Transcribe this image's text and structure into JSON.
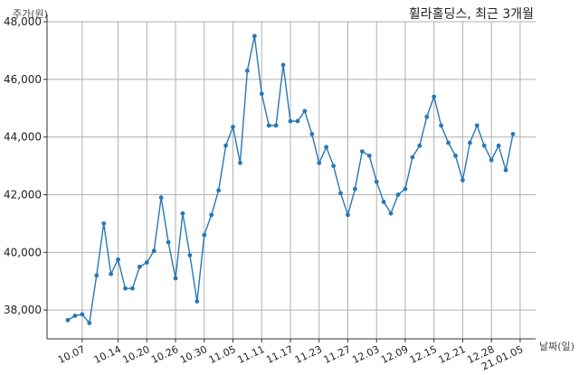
{
  "chart_data": {
    "type": "line",
    "title": "휠라홀딩스, 최근 3개월",
    "xlabel": "날짜(일)",
    "ylabel": "주가(원)",
    "ylim": [
      37000,
      48000
    ],
    "yticks": [
      38000,
      40000,
      42000,
      44000,
      46000,
      48000
    ],
    "ytick_labels": [
      "38,000",
      "40,000",
      "42,000",
      "44,000",
      "46,000",
      "48,000"
    ],
    "xtick_labels": [
      "10.07",
      "10.14",
      "10.20",
      "10.26",
      "10.30",
      "11.05",
      "11.11",
      "11.17",
      "11.23",
      "11.27",
      "12.03",
      "12.09",
      "12.15",
      "12.21",
      "12.28",
      "21.01.05"
    ],
    "xtick_index": [
      2,
      7,
      11,
      15,
      19,
      23,
      27,
      31,
      35,
      39,
      43,
      47,
      51,
      55,
      59,
      63
    ],
    "grid": true,
    "color": "#2878b5",
    "series": [
      {
        "values": [
          37650,
          37800,
          37850,
          37550,
          39200,
          41000,
          39250,
          39750,
          38750,
          38750,
          39500,
          39650,
          40050,
          41900,
          40350,
          39100,
          41350,
          39900,
          38300,
          40600,
          41300,
          42150,
          43700,
          44350,
          43100,
          46300,
          47500,
          45500,
          44400,
          44400,
          46500,
          44550,
          44550,
          44900,
          44100,
          43100,
          43650,
          43000,
          42050,
          41300,
          42200,
          43500,
          43350,
          42450,
          41750,
          41350,
          42000,
          42200,
          43300,
          43700,
          44700,
          45400,
          44400,
          43800,
          43350,
          42500,
          43800,
          44400,
          43700,
          43200,
          43700,
          42850,
          44100
        ]
      }
    ]
  }
}
